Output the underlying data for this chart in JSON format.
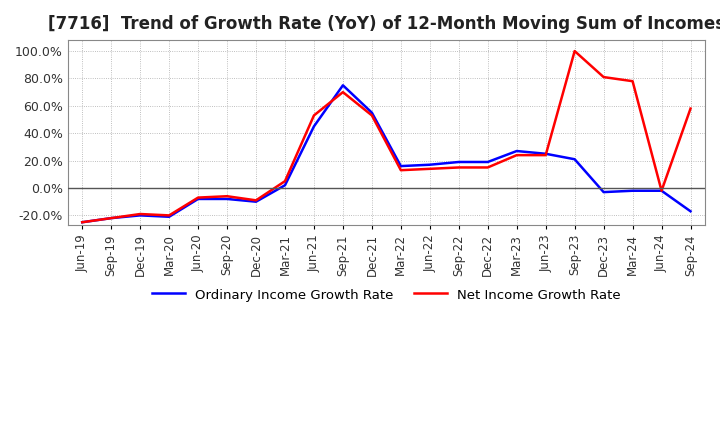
{
  "title": "[7716]  Trend of Growth Rate (YoY) of 12-Month Moving Sum of Incomes",
  "title_fontsize": 12,
  "ylim": [
    -27,
    108
  ],
  "yticks": [
    -20,
    0,
    20,
    40,
    60,
    80,
    100
  ],
  "ytick_labels": [
    "-20.0%",
    "0.0%",
    "20.0%",
    "40.0%",
    "60.0%",
    "80.0%",
    "100.0%"
  ],
  "background_color": "#ffffff",
  "grid_color": "#aaaaaa",
  "legend_labels": [
    "Ordinary Income Growth Rate",
    "Net Income Growth Rate"
  ],
  "legend_colors": [
    "#0000ff",
    "#ff0000"
  ],
  "x_labels": [
    "Jun-19",
    "Sep-19",
    "Dec-19",
    "Mar-20",
    "Jun-20",
    "Sep-20",
    "Dec-20",
    "Mar-21",
    "Jun-21",
    "Sep-21",
    "Dec-21",
    "Mar-22",
    "Jun-22",
    "Sep-22",
    "Dec-22",
    "Mar-23",
    "Jun-23",
    "Sep-23",
    "Dec-23",
    "Mar-24",
    "Jun-24",
    "Sep-24"
  ],
  "ordinary_income": [
    -25,
    -22,
    -20,
    -21,
    -8,
    -8,
    -10,
    2,
    45,
    75,
    55,
    16,
    17,
    19,
    19,
    27,
    25,
    21,
    -3,
    -2,
    -2,
    -17
  ],
  "net_income": [
    -25,
    -22,
    -19,
    -20,
    -7,
    -6,
    -9,
    5,
    53,
    70,
    53,
    13,
    14,
    15,
    15,
    24,
    24,
    100,
    81,
    78,
    -2,
    58
  ]
}
